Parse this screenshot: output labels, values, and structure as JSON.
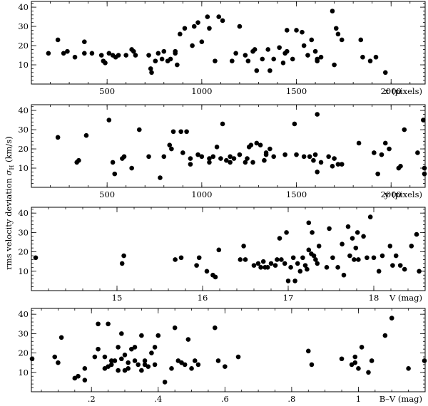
{
  "ylabel_text": "rms velocity deviation",
  "ylabel_symbol": "σ",
  "ylabel_subscript": "H",
  "ylabel_unit": "(km/s)",
  "chart_data": [
    {
      "type": "scatter",
      "xlabel": "x (pixels)",
      "xlim": [
        100,
        2180
      ],
      "ylim": [
        0,
        43
      ],
      "xticks_major": [
        500,
        1000,
        1500,
        2000
      ],
      "xtick_minor_step": 100,
      "yticks_major": [
        10,
        20,
        30,
        40
      ],
      "ytick_minor_step": 2,
      "points": [
        [
          190,
          16
        ],
        [
          240,
          23
        ],
        [
          270,
          16
        ],
        [
          290,
          17
        ],
        [
          330,
          14
        ],
        [
          380,
          16
        ],
        [
          380,
          22
        ],
        [
          420,
          16
        ],
        [
          470,
          15
        ],
        [
          480,
          12
        ],
        [
          490,
          11
        ],
        [
          510,
          16
        ],
        [
          530,
          15
        ],
        [
          545,
          14
        ],
        [
          560,
          15
        ],
        [
          600,
          15
        ],
        [
          630,
          18
        ],
        [
          640,
          17
        ],
        [
          650,
          15
        ],
        [
          720,
          15
        ],
        [
          730,
          8
        ],
        [
          735,
          6
        ],
        [
          755,
          12
        ],
        [
          770,
          16
        ],
        [
          790,
          13
        ],
        [
          800,
          17
        ],
        [
          820,
          12
        ],
        [
          835,
          13
        ],
        [
          860,
          17
        ],
        [
          860,
          16
        ],
        [
          870,
          10
        ],
        [
          885,
          26
        ],
        [
          910,
          29
        ],
        [
          950,
          20
        ],
        [
          960,
          30
        ],
        [
          980,
          32
        ],
        [
          1000,
          22
        ],
        [
          1030,
          35
        ],
        [
          1040,
          29
        ],
        [
          1070,
          12
        ],
        [
          1090,
          35
        ],
        [
          1110,
          33
        ],
        [
          1160,
          12
        ],
        [
          1180,
          16
        ],
        [
          1200,
          30
        ],
        [
          1230,
          15
        ],
        [
          1245,
          12
        ],
        [
          1270,
          17
        ],
        [
          1280,
          18
        ],
        [
          1290,
          7
        ],
        [
          1320,
          13
        ],
        [
          1350,
          18
        ],
        [
          1360,
          7
        ],
        [
          1380,
          13
        ],
        [
          1410,
          19
        ],
        [
          1430,
          11
        ],
        [
          1440,
          16
        ],
        [
          1450,
          17
        ],
        [
          1450,
          28
        ],
        [
          1480,
          13
        ],
        [
          1500,
          28
        ],
        [
          1530,
          27
        ],
        [
          1540,
          20
        ],
        [
          1560,
          15
        ],
        [
          1580,
          23
        ],
        [
          1600,
          17
        ],
        [
          1610,
          12
        ],
        [
          1610,
          13
        ],
        [
          1630,
          14
        ],
        [
          1690,
          38
        ],
        [
          1700,
          10
        ],
        [
          1710,
          29
        ],
        [
          1720,
          26
        ],
        [
          1740,
          23
        ],
        [
          1840,
          23
        ],
        [
          1850,
          14
        ],
        [
          1890,
          12
        ],
        [
          1920,
          14
        ],
        [
          1970,
          6
        ]
      ]
    },
    {
      "type": "scatter",
      "xlabel": "y (pixels)",
      "xlim": [
        100,
        2180
      ],
      "ylim": [
        0,
        43
      ],
      "xticks_major": [
        500,
        1000,
        1500,
        2000
      ],
      "xtick_minor_step": 100,
      "yticks_major": [
        10,
        20,
        30,
        40
      ],
      "ytick_minor_step": 2,
      "points": [
        [
          240,
          26
        ],
        [
          340,
          13
        ],
        [
          350,
          14
        ],
        [
          390,
          27
        ],
        [
          510,
          35
        ],
        [
          530,
          13
        ],
        [
          540,
          7
        ],
        [
          580,
          15
        ],
        [
          590,
          16
        ],
        [
          630,
          10
        ],
        [
          670,
          30
        ],
        [
          720,
          16
        ],
        [
          780,
          5
        ],
        [
          800,
          16
        ],
        [
          830,
          22
        ],
        [
          840,
          20
        ],
        [
          850,
          29
        ],
        [
          890,
          29
        ],
        [
          900,
          18
        ],
        [
          920,
          29
        ],
        [
          940,
          12
        ],
        [
          940,
          15
        ],
        [
          980,
          17
        ],
        [
          1000,
          16
        ],
        [
          1040,
          15
        ],
        [
          1040,
          13
        ],
        [
          1060,
          16
        ],
        [
          1080,
          21
        ],
        [
          1100,
          15
        ],
        [
          1110,
          33
        ],
        [
          1130,
          14
        ],
        [
          1150,
          16
        ],
        [
          1150,
          13
        ],
        [
          1170,
          15
        ],
        [
          1200,
          17
        ],
        [
          1230,
          13
        ],
        [
          1240,
          15
        ],
        [
          1250,
          21
        ],
        [
          1260,
          22
        ],
        [
          1270,
          13
        ],
        [
          1290,
          23
        ],
        [
          1310,
          22
        ],
        [
          1330,
          14
        ],
        [
          1340,
          17
        ],
        [
          1340,
          18
        ],
        [
          1360,
          20
        ],
        [
          1380,
          16
        ],
        [
          1440,
          17
        ],
        [
          1490,
          33
        ],
        [
          1500,
          17
        ],
        [
          1540,
          16
        ],
        [
          1570,
          16
        ],
        [
          1590,
          14
        ],
        [
          1600,
          17
        ],
        [
          1610,
          38
        ],
        [
          1610,
          8
        ],
        [
          1630,
          13
        ],
        [
          1670,
          16
        ],
        [
          1690,
          11
        ],
        [
          1700,
          15
        ],
        [
          1720,
          12
        ],
        [
          1740,
          12
        ],
        [
          1830,
          23
        ],
        [
          1910,
          18
        ],
        [
          1930,
          7
        ],
        [
          1950,
          17
        ],
        [
          1970,
          23
        ],
        [
          1990,
          20
        ],
        [
          2040,
          10
        ],
        [
          2050,
          11
        ],
        [
          2070,
          30
        ],
        [
          2140,
          18
        ],
        [
          2170,
          35
        ],
        [
          2230,
          10
        ],
        [
          2260,
          7
        ]
      ]
    },
    {
      "type": "scatter",
      "xlabel": "V (mag)",
      "xlim": [
        14,
        18.6
      ],
      "ylim": [
        0,
        43
      ],
      "xticks_major": [
        15,
        16,
        17,
        18
      ],
      "xtick_minor_step": 0.2,
      "yticks_major": [
        10,
        20,
        30,
        40
      ],
      "ytick_minor_step": 2,
      "points": [
        [
          14.05,
          17
        ],
        [
          15.06,
          14
        ],
        [
          15.08,
          18
        ],
        [
          15.68,
          16
        ],
        [
          15.75,
          17
        ],
        [
          15.93,
          13
        ],
        [
          15.96,
          17
        ],
        [
          16.05,
          10
        ],
        [
          16.12,
          8
        ],
        [
          16.15,
          7
        ],
        [
          16.19,
          21
        ],
        [
          16.44,
          16
        ],
        [
          16.48,
          23
        ],
        [
          16.5,
          16
        ],
        [
          16.6,
          13
        ],
        [
          16.65,
          14
        ],
        [
          16.68,
          12
        ],
        [
          16.71,
          15
        ],
        [
          16.73,
          12
        ],
        [
          16.76,
          12
        ],
        [
          16.8,
          14
        ],
        [
          16.85,
          13
        ],
        [
          16.87,
          16
        ],
        [
          16.9,
          27
        ],
        [
          16.92,
          16
        ],
        [
          16.96,
          14
        ],
        [
          16.98,
          30
        ],
        [
          17,
          5
        ],
        [
          17.03,
          12
        ],
        [
          17.06,
          17
        ],
        [
          17.08,
          5
        ],
        [
          17.11,
          14
        ],
        [
          17.14,
          10
        ],
        [
          17.17,
          17
        ],
        [
          17.2,
          13
        ],
        [
          17.22,
          11
        ],
        [
          17.24,
          21
        ],
        [
          17.24,
          35
        ],
        [
          17.27,
          19
        ],
        [
          17.28,
          30
        ],
        [
          17.3,
          18
        ],
        [
          17.32,
          16
        ],
        [
          17.34,
          14
        ],
        [
          17.36,
          23
        ],
        [
          17.45,
          12
        ],
        [
          17.48,
          32
        ],
        [
          17.52,
          17
        ],
        [
          17.58,
          12
        ],
        [
          17.63,
          24
        ],
        [
          17.65,
          8
        ],
        [
          17.7,
          33
        ],
        [
          17.72,
          18
        ],
        [
          17.75,
          27
        ],
        [
          17.77,
          16
        ],
        [
          17.79,
          22
        ],
        [
          17.81,
          30
        ],
        [
          17.82,
          16
        ],
        [
          17.88,
          28
        ],
        [
          17.92,
          17
        ],
        [
          17.96,
          38
        ],
        [
          18,
          17
        ],
        [
          18.06,
          10
        ],
        [
          18.1,
          18
        ],
        [
          18.19,
          23
        ],
        [
          18.22,
          13
        ],
        [
          18.26,
          18
        ],
        [
          18.31,
          13
        ],
        [
          18.36,
          11
        ],
        [
          18.44,
          23
        ],
        [
          18.5,
          29
        ],
        [
          18.53,
          10
        ]
      ]
    },
    {
      "type": "scatter",
      "xlabel": "B–V (mag)",
      "xlim": [
        0.02,
        1.2
      ],
      "ylim": [
        0,
        43
      ],
      "xticks_major": [
        0.2,
        0.4,
        0.6,
        0.8,
        1
      ],
      "xtick_minor_step": 0.05,
      "yticks_major": [
        10,
        20,
        30,
        40
      ],
      "ytick_minor_step": 2,
      "points": [
        [
          0.02,
          17
        ],
        [
          0.09,
          18
        ],
        [
          0.1,
          15
        ],
        [
          0.11,
          28
        ],
        [
          0.15,
          7
        ],
        [
          0.16,
          8
        ],
        [
          0.18,
          6
        ],
        [
          0.18,
          12
        ],
        [
          0.21,
          18
        ],
        [
          0.22,
          35
        ],
        [
          0.22,
          22
        ],
        [
          0.24,
          18
        ],
        [
          0.24,
          12
        ],
        [
          0.25,
          35
        ],
        [
          0.25,
          13
        ],
        [
          0.26,
          16
        ],
        [
          0.26,
          14
        ],
        [
          0.27,
          16
        ],
        [
          0.28,
          23
        ],
        [
          0.28,
          11
        ],
        [
          0.29,
          30
        ],
        [
          0.29,
          17
        ],
        [
          0.3,
          19
        ],
        [
          0.3,
          11
        ],
        [
          0.31,
          15
        ],
        [
          0.31,
          12
        ],
        [
          0.32,
          22
        ],
        [
          0.33,
          23
        ],
        [
          0.33,
          16
        ],
        [
          0.34,
          14
        ],
        [
          0.35,
          29
        ],
        [
          0.35,
          11
        ],
        [
          0.36,
          16
        ],
        [
          0.36,
          14
        ],
        [
          0.37,
          13
        ],
        [
          0.38,
          20
        ],
        [
          0.39,
          23
        ],
        [
          0.39,
          14
        ],
        [
          0.4,
          29
        ],
        [
          0.42,
          5
        ],
        [
          0.44,
          12
        ],
        [
          0.45,
          33
        ],
        [
          0.46,
          16
        ],
        [
          0.47,
          15
        ],
        [
          0.48,
          14
        ],
        [
          0.49,
          27
        ],
        [
          0.5,
          12
        ],
        [
          0.51,
          16
        ],
        [
          0.52,
          14
        ],
        [
          0.57,
          33
        ],
        [
          0.58,
          16
        ],
        [
          0.6,
          13
        ],
        [
          0.64,
          18
        ],
        [
          0.85,
          21
        ],
        [
          0.86,
          14
        ],
        [
          0.95,
          17
        ],
        [
          0.98,
          14
        ],
        [
          0.99,
          18
        ],
        [
          0.99,
          15
        ],
        [
          1,
          12
        ],
        [
          1.01,
          23
        ],
        [
          1.03,
          10
        ],
        [
          1.04,
          16
        ],
        [
          1.08,
          29
        ],
        [
          1.1,
          38
        ],
        [
          1.15,
          12
        ],
        [
          1.2,
          16
        ]
      ]
    }
  ]
}
